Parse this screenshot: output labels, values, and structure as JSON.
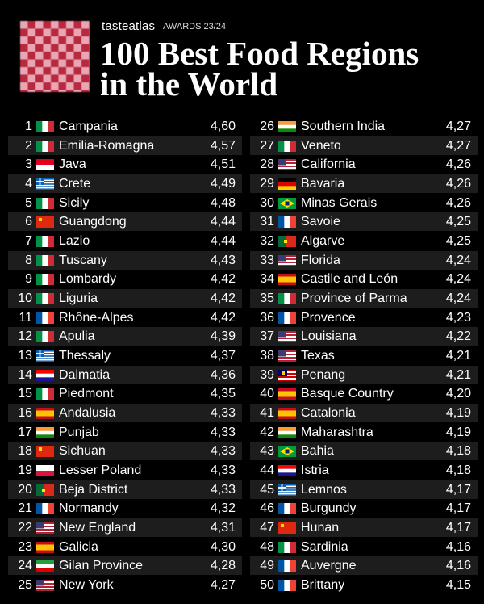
{
  "header": {
    "brand": "tasteatlas",
    "awards": "AWARDS 23/24",
    "title_line1": "100 Best Food Regions",
    "title_line2": "in the World"
  },
  "regions": [
    {
      "rank": 1,
      "name": "Campania",
      "score": "4,60"
    },
    {
      "rank": 2,
      "name": "Emilia-Romagna",
      "score": "4,57"
    },
    {
      "rank": 3,
      "name": "Java",
      "score": "4,51"
    },
    {
      "rank": 4,
      "name": "Crete",
      "score": "4,49"
    },
    {
      "rank": 5,
      "name": "Sicily",
      "score": "4,48"
    },
    {
      "rank": 6,
      "name": "Guangdong",
      "score": "4,44"
    },
    {
      "rank": 7,
      "name": "Lazio",
      "score": "4,44"
    },
    {
      "rank": 8,
      "name": "Tuscany",
      "score": "4,43"
    },
    {
      "rank": 9,
      "name": "Lombardy",
      "score": "4,42"
    },
    {
      "rank": 10,
      "name": "Liguria",
      "score": "4,42"
    },
    {
      "rank": 11,
      "name": "Rhône-Alpes",
      "score": "4,42"
    },
    {
      "rank": 12,
      "name": "Apulia",
      "score": "4,39"
    },
    {
      "rank": 13,
      "name": "Thessaly",
      "score": "4,37"
    },
    {
      "rank": 14,
      "name": "Dalmatia",
      "score": "4,36"
    },
    {
      "rank": 15,
      "name": "Piedmont",
      "score": "4,35"
    },
    {
      "rank": 16,
      "name": "Andalusia",
      "score": "4,33"
    },
    {
      "rank": 17,
      "name": "Punjab",
      "score": "4,33"
    },
    {
      "rank": 18,
      "name": "Sichuan",
      "score": "4,33"
    },
    {
      "rank": 19,
      "name": "Lesser Poland",
      "score": "4,33"
    },
    {
      "rank": 20,
      "name": "Beja District",
      "score": "4,33"
    },
    {
      "rank": 21,
      "name": "Normandy",
      "score": "4,32"
    },
    {
      "rank": 22,
      "name": "New England",
      "score": "4,31"
    },
    {
      "rank": 23,
      "name": "Galicia",
      "score": "4,30"
    },
    {
      "rank": 24,
      "name": "Gilan Province",
      "score": "4,28"
    },
    {
      "rank": 25,
      "name": "New York",
      "score": "4,27"
    },
    {
      "rank": 26,
      "name": "Southern India",
      "score": "4,27"
    },
    {
      "rank": 27,
      "name": "Veneto",
      "score": "4,27"
    },
    {
      "rank": 28,
      "name": "California",
      "score": "4,26"
    },
    {
      "rank": 29,
      "name": "Bavaria",
      "score": "4,26"
    },
    {
      "rank": 30,
      "name": "Minas Gerais",
      "score": "4,26"
    },
    {
      "rank": 31,
      "name": "Savoie",
      "score": "4,25"
    },
    {
      "rank": 32,
      "name": "Algarve",
      "score": "4,25"
    },
    {
      "rank": 33,
      "name": "Florida",
      "score": "4,24"
    },
    {
      "rank": 34,
      "name": "Castile and León",
      "score": "4,24"
    },
    {
      "rank": 35,
      "name": "Province of Parma",
      "score": "4,24"
    },
    {
      "rank": 36,
      "name": "Provence",
      "score": "4,23"
    },
    {
      "rank": 37,
      "name": "Louisiana",
      "score": "4,22"
    },
    {
      "rank": 38,
      "name": "Texas",
      "score": "4,21"
    },
    {
      "rank": 39,
      "name": "Penang",
      "score": "4,21"
    },
    {
      "rank": 40,
      "name": "Basque Country",
      "score": "4,20"
    },
    {
      "rank": 41,
      "name": "Catalonia",
      "score": "4,19"
    },
    {
      "rank": 42,
      "name": "Maharashtra",
      "score": "4,19"
    },
    {
      "rank": 43,
      "name": "Bahia",
      "score": "4,18"
    },
    {
      "rank": 44,
      "name": "Istria",
      "score": "4,18"
    },
    {
      "rank": 45,
      "name": "Lemnos",
      "score": "4,17"
    },
    {
      "rank": 46,
      "name": "Burgundy",
      "score": "4,17"
    },
    {
      "rank": 47,
      "name": "Hunan",
      "score": "4,17"
    },
    {
      "rank": 48,
      "name": "Sardinia",
      "score": "4,16"
    },
    {
      "rank": 49,
      "name": "Auvergne",
      "score": "4,16"
    },
    {
      "rank": 50,
      "name": "Brittany",
      "score": "4,15"
    }
  ]
}
